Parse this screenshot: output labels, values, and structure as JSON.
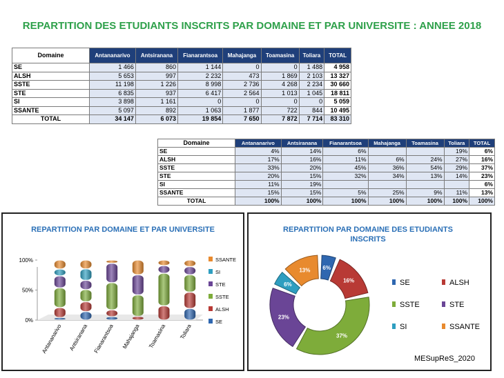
{
  "title": "REPARTITION DES ETUDIANTS INSCRITS PAR DOMAINE ET PAR UNIVERSITE  : ANNEE 2018",
  "table_counts": {
    "header": [
      "Domaine",
      "Antananarivo",
      "Antsiranana",
      "Fianarantsoa",
      "Mahajanga",
      "Toamasina",
      "Toliara",
      "TOTAL"
    ],
    "rows": [
      [
        "SE",
        "1 466",
        "860",
        "1 144",
        "0",
        "0",
        "1 488",
        "4 958"
      ],
      [
        "ALSH",
        "5 653",
        "997",
        "2 232",
        "473",
        "1 869",
        "2 103",
        "13 327"
      ],
      [
        "SSTE",
        "11 198",
        "1 226",
        "8 998",
        "2 736",
        "4 268",
        "2 234",
        "30 660"
      ],
      [
        "STE",
        "6 835",
        "937",
        "6 417",
        "2 564",
        "1 013",
        "1 045",
        "18 811"
      ],
      [
        "SI",
        "3 898",
        "1 161",
        "0",
        "0",
        "0",
        "0",
        "5 059"
      ],
      [
        "SSANTE",
        "5 097",
        "892",
        "1 063",
        "1 877",
        "722",
        "844",
        "10 495"
      ],
      [
        "TOTAL",
        "34 147",
        "6 073",
        "19 854",
        "7 650",
        "7 872",
        "7 714",
        "83 310"
      ]
    ]
  },
  "table_percent": {
    "header": [
      "Domaine",
      "Antananarivo",
      "Antsiranana",
      "Fianarantsoa",
      "Mahajanga",
      "Toamasina",
      "Toliara",
      "TOTAL"
    ],
    "rows": [
      [
        "SE",
        "4%",
        "14%",
        "6%",
        "",
        "",
        "19%",
        "6%"
      ],
      [
        "ALSH",
        "17%",
        "16%",
        "11%",
        "6%",
        "24%",
        "27%",
        "16%"
      ],
      [
        "SSTE",
        "33%",
        "20%",
        "45%",
        "36%",
        "54%",
        "29%",
        "37%"
      ],
      [
        "STE",
        "20%",
        "15%",
        "32%",
        "34%",
        "13%",
        "14%",
        "23%"
      ],
      [
        "SI",
        "11%",
        "19%",
        "",
        "",
        "",
        "",
        "6%"
      ],
      [
        "SSANTE",
        "15%",
        "15%",
        "5%",
        "25%",
        "9%",
        "11%",
        "13%"
      ],
      [
        "TOTAL",
        "100%",
        "100%",
        "100%",
        "100%",
        "100%",
        "100%",
        "100%"
      ]
    ]
  },
  "colors": {
    "SE": "#2f67b0",
    "ALSH": "#b83a35",
    "SSTE": "#7eac3a",
    "STE": "#6a4596",
    "SI": "#2e9ec0",
    "SSANTE": "#e88a2e"
  },
  "chart_data": [
    {
      "type": "bar",
      "title": "REPARTITION PAR DOMAINE ET PAR UNIVERSITE",
      "stacked": "percent",
      "categories": [
        "Antananarivo",
        "Antsiranana",
        "Fianarantsoa",
        "Mahajanga",
        "Toamasina",
        "Toliara"
      ],
      "yticks": [
        "0%",
        "50%",
        "100%"
      ],
      "legend": [
        "SSANTE",
        "SI",
        "STE",
        "SSTE",
        "ALSH",
        "SE"
      ],
      "series": [
        {
          "name": "SE",
          "values": [
            1466,
            860,
            1144,
            0,
            0,
            1488
          ]
        },
        {
          "name": "ALSH",
          "values": [
            5653,
            997,
            2232,
            473,
            1869,
            2103
          ]
        },
        {
          "name": "SSTE",
          "values": [
            11198,
            1226,
            8998,
            2736,
            4268,
            2234
          ]
        },
        {
          "name": "STE",
          "values": [
            6835,
            937,
            6417,
            2564,
            1013,
            1045
          ]
        },
        {
          "name": "SI",
          "values": [
            3898,
            1161,
            0,
            0,
            0,
            0
          ]
        },
        {
          "name": "SSANTE",
          "values": [
            5097,
            892,
            1063,
            1877,
            722,
            844
          ]
        }
      ]
    },
    {
      "type": "pie",
      "title": "REPARTITION PAR DOMAINE DES ETUDIANTS INSCRITS",
      "labels": [
        "SE",
        "ALSH",
        "SSTE",
        "STE",
        "SI",
        "SSANTE"
      ],
      "values": [
        6,
        16,
        37,
        23,
        6,
        13
      ],
      "value_labels": [
        "6%",
        "16%",
        "37%",
        "23%",
        "6%",
        "13%"
      ]
    }
  ],
  "credit": "MESupReS_2020"
}
